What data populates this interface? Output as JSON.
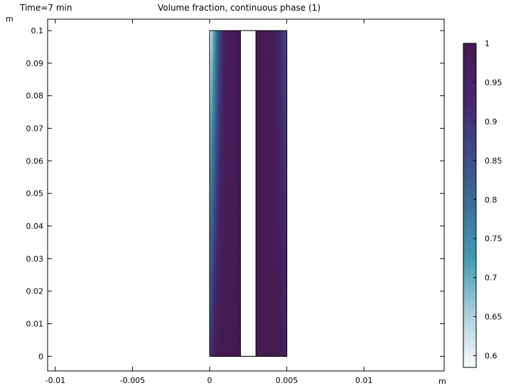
{
  "header": {
    "time_label": "Time=7 min",
    "title": "Volume fraction, continuous phase (1)"
  },
  "chart_data": {
    "type": "heatmap",
    "title": "Volume fraction, continuous phase (1)",
    "time": "Time=7 min",
    "x_unit": "m",
    "y_unit": "m",
    "xlim": [
      -0.0105,
      0.0152
    ],
    "ylim": [
      -0.0045,
      0.1035
    ],
    "x_ticks": [
      -0.01,
      -0.005,
      0,
      0.005,
      0.01
    ],
    "x_tick_labels": [
      "-0.01",
      "-0.005",
      "0",
      "0.005",
      "0.01"
    ],
    "y_ticks": [
      0,
      0.01,
      0.02,
      0.03,
      0.04,
      0.05,
      0.06,
      0.07,
      0.08,
      0.09,
      0.1
    ],
    "y_tick_labels": [
      "0",
      "0.01",
      "0.02",
      "0.03",
      "0.04",
      "0.05",
      "0.06",
      "0.07",
      "0.08",
      "0.09",
      "0.1"
    ],
    "grid": false,
    "domain": {
      "x_range": [
        0,
        0.005
      ],
      "y_range": [
        0,
        0.1
      ],
      "inner_region_x_range": [
        0.002,
        0.003
      ],
      "note_inner_region": "unfilled"
    },
    "field_profile": {
      "description": "volume fraction vs x at bottom (y=0) and top (y=0.1) of each subdomain",
      "left_x": [
        0,
        0.0003,
        0.0006,
        0.001,
        0.002
      ],
      "left_values_bottom": [
        0.88,
        0.97,
        1.0,
        1.0,
        1.0
      ],
      "left_values_top": [
        0.6,
        0.72,
        0.86,
        0.97,
        1.0
      ],
      "right_x": [
        0.003,
        0.004,
        0.0044,
        0.0047,
        0.005
      ],
      "right_values_bottom": [
        1.0,
        1.0,
        1.0,
        0.98,
        0.95
      ],
      "right_values_top": [
        1.0,
        0.98,
        0.95,
        0.9,
        0.86
      ]
    },
    "colorbar": {
      "min": 0.585,
      "max": 1.0,
      "ticks": [
        1,
        0.95,
        0.9,
        0.85,
        0.8,
        0.75,
        0.7,
        0.65,
        0.6
      ],
      "tick_labels": [
        "1",
        "0.95",
        "0.9",
        "0.85",
        "0.8",
        "0.75",
        "0.7",
        "0.65",
        "0.6"
      ],
      "colormap": [
        "#fbfcfe",
        "#a9cfdb",
        "#459bb1",
        "#3b6f95",
        "#3f4984",
        "#45266a",
        "#441a52"
      ]
    }
  }
}
